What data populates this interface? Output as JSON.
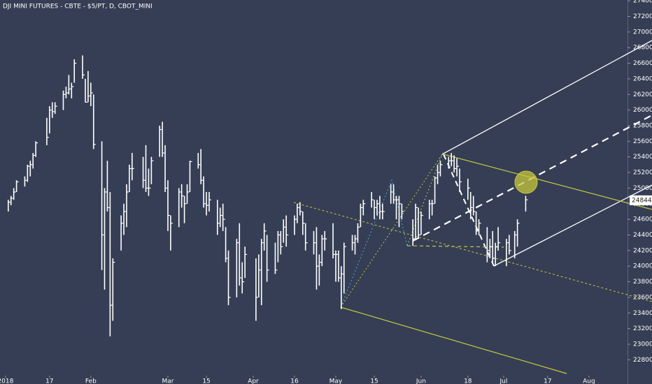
{
  "chart_data": {
    "type": "ohlc",
    "title": "DJI MINI FUTURES - CBTE - $5/PT, D, CBOT_MINI",
    "color": "#ffffff",
    "background": "#353e54",
    "xlim": [
      -1,
      227
    ],
    "xticks": [
      {
        "value": 1,
        "label": "2018"
      },
      17,
      {
        "value": 32,
        "label": "Feb"
      },
      {
        "value": 60,
        "label": "Mar"
      },
      {
        "value": 74,
        "label": "15"
      },
      {
        "value": 91,
        "label": "Apr"
      },
      {
        "value": 106,
        "label": "16"
      },
      {
        "value": 121,
        "label": "May"
      },
      {
        "value": 135,
        "label": "15"
      },
      {
        "value": 152,
        "label": "Jun"
      },
      {
        "value": 169,
        "label": "18"
      },
      {
        "value": 182,
        "label": "Jul"
      },
      {
        "value": 198,
        "label": "17"
      },
      {
        "value": 213,
        "label": "Aug"
      }
    ],
    "ylim": [
      22490,
      27410
    ],
    "yticks": [
      22800,
      23000,
      23200,
      23400,
      23600,
      23800,
      24000,
      24200,
      24400,
      24600,
      24800,
      25000,
      25200,
      25400,
      25600,
      25800,
      26000,
      26200,
      26400,
      26600,
      26800,
      27000,
      27200,
      27400
    ],
    "last_price": 24844,
    "x": [
      2,
      3,
      4,
      5,
      8,
      9,
      10,
      11,
      12,
      16,
      17,
      18,
      19,
      22,
      23,
      24,
      25,
      26,
      29,
      30,
      31,
      32,
      33,
      36,
      37,
      38,
      39,
      40,
      43,
      44,
      45,
      46,
      47,
      51,
      52,
      53,
      54,
      57,
      58,
      59,
      60,
      61,
      64,
      65,
      66,
      67,
      68,
      71,
      72,
      73,
      74,
      75,
      78,
      79,
      80,
      81,
      82,
      85,
      86,
      87,
      88,
      92,
      93,
      94,
      95,
      96,
      99,
      100,
      101,
      102,
      103,
      106,
      107,
      108,
      109,
      110,
      113,
      114,
      115,
      116,
      117,
      120,
      121,
      122,
      123,
      124,
      127,
      128,
      129,
      130,
      131,
      134,
      135,
      136,
      137,
      138,
      141,
      142,
      143,
      144,
      145,
      149,
      150,
      151,
      152,
      155,
      156,
      157,
      158,
      159,
      162,
      163,
      164,
      165,
      166,
      169,
      170,
      171,
      172,
      173,
      176,
      177,
      178,
      179,
      180,
      183,
      184,
      186,
      187,
      190
    ],
    "high": [
      24850,
      24900,
      25000,
      25100,
      25150,
      25300,
      25350,
      25450,
      25600,
      25900,
      26050,
      26100,
      26100,
      26250,
      26300,
      26450,
      26350,
      26650,
      26700,
      26400,
      26500,
      26350,
      26200,
      25600,
      25000,
      25350,
      24950,
      24100,
      24650,
      24800,
      25050,
      25300,
      25450,
      25400,
      25550,
      25250,
      25400,
      25800,
      25850,
      25550,
      25100,
      24650,
      25000,
      25050,
      24900,
      25050,
      25350,
      25450,
      25500,
      25150,
      24950,
      24950,
      24850,
      24750,
      24800,
      24500,
      24200,
      24350,
      24550,
      24050,
      24250,
      24100,
      24150,
      24350,
      24550,
      24400,
      24300,
      24450,
      24450,
      24600,
      24650,
      24650,
      24800,
      24820,
      24700,
      24550,
      24450,
      24500,
      24150,
      24400,
      24450,
      24550,
      24200,
      24200,
      24000,
      24300,
      24400,
      24400,
      24550,
      24800,
      24850,
      24950,
      24850,
      24850,
      24900,
      24800,
      25050,
      25050,
      24900,
      24900,
      24800,
      24600,
      24800,
      24750,
      24700,
      24850,
      24850,
      25150,
      25300,
      25350,
      25400,
      25450,
      25420,
      25380,
      25250,
      25120,
      24950,
      24900,
      24700,
      24600,
      24500,
      24350,
      24450,
      24300,
      24500,
      24350,
      24400,
      24450,
      24600,
      24900
    ],
    "low": [
      24700,
      24780,
      24850,
      24950,
      25020,
      25080,
      25150,
      25250,
      25400,
      25550,
      25700,
      25900,
      25950,
      26000,
      26150,
      26200,
      26150,
      26350,
      26400,
      26100,
      26100,
      26050,
      25500,
      23950,
      23700,
      24700,
      23100,
      23300,
      24200,
      24400,
      24500,
      24950,
      25100,
      25000,
      24950,
      24900,
      25050,
      25400,
      25400,
      24950,
      24450,
      24200,
      24500,
      24750,
      24550,
      24800,
      24950,
      25250,
      25050,
      24750,
      24650,
      24700,
      24400,
      24500,
      24450,
      24050,
      23500,
      23600,
      23750,
      23650,
      23850,
      23300,
      23600,
      23500,
      24200,
      23800,
      23900,
      24050,
      24150,
      24300,
      24250,
      24400,
      24550,
      24650,
      24400,
      24200,
      24150,
      23700,
      23750,
      24000,
      24200,
      24100,
      23800,
      23800,
      23450,
      23650,
      24200,
      24150,
      24300,
      24500,
      24650,
      24750,
      24600,
      24650,
      24600,
      24600,
      24800,
      24800,
      24600,
      24500,
      24600,
      24260,
      24350,
      24350,
      24400,
      24600,
      24650,
      24800,
      25050,
      25150,
      25250,
      25280,
      25200,
      25150,
      24950,
      24850,
      24600,
      24650,
      24400,
      24400,
      24050,
      24100,
      24050,
      24000,
      24200,
      24000,
      24150,
      24100,
      24250,
      24700
    ],
    "close": [
      24820,
      24870,
      24950,
      25080,
      25100,
      25280,
      25300,
      25420,
      25580,
      25650,
      26000,
      25980,
      26050,
      26200,
      26220,
      26270,
      26300,
      26600,
      26450,
      26100,
      26180,
      26220,
      25560,
      24400,
      24950,
      24750,
      23500,
      24050,
      24550,
      24700,
      24950,
      25250,
      25250,
      25100,
      25000,
      25000,
      25350,
      25750,
      25450,
      25000,
      24650,
      24550,
      24950,
      24900,
      24800,
      24950,
      25340,
      25300,
      25100,
      24800,
      24780,
      24850,
      24550,
      24650,
      24600,
      24100,
      23600,
      24300,
      23850,
      23800,
      24150,
      23600,
      23950,
      24300,
      24450,
      23950,
      23950,
      24400,
      24250,
      24500,
      24400,
      24600,
      24750,
      24700,
      24550,
      24300,
      24300,
      24000,
      24050,
      24350,
      24350,
      24150,
      24150,
      23850,
      23900,
      24250,
      24300,
      24350,
      24500,
      24750,
      24800,
      24850,
      24750,
      24800,
      24700,
      24700,
      24950,
      24850,
      24850,
      24800,
      24700,
      24350,
      24750,
      24400,
      24650,
      24800,
      24800,
      25130,
      25200,
      25300,
      25350,
      25350,
      25250,
      25280,
      25080,
      25000,
      24750,
      24700,
      24450,
      24550,
      24200,
      24250,
      24100,
      24250,
      24300,
      24300,
      24200,
      24400,
      24550,
      24850
    ]
  }
}
